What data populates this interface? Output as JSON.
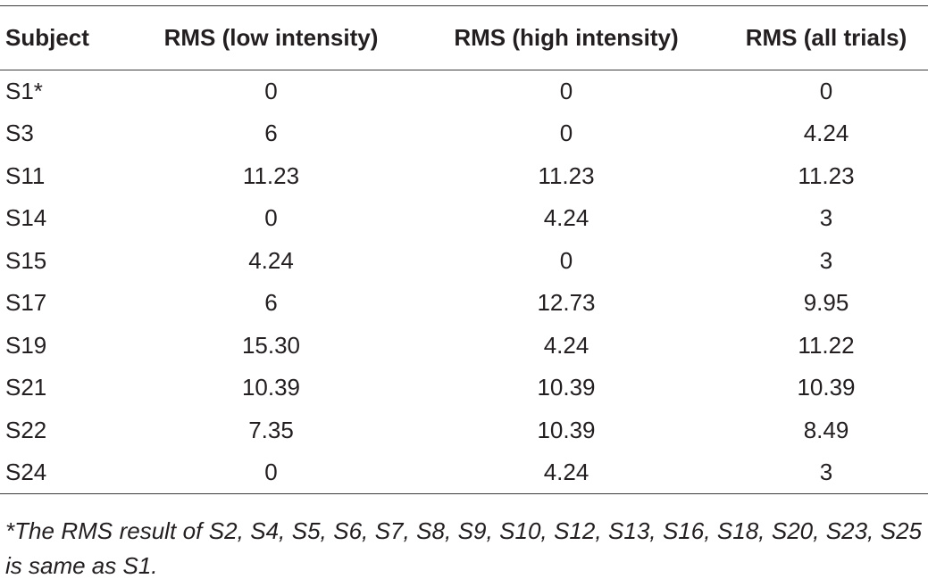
{
  "table": {
    "headers": [
      "Subject",
      "RMS (low intensity)",
      "RMS (high intensity)",
      "RMS (all trials)"
    ],
    "rows": [
      [
        "S1*",
        "0",
        "0",
        "0"
      ],
      [
        "S3",
        "6",
        "0",
        "4.24"
      ],
      [
        "S11",
        "11.23",
        "11.23",
        "11.23"
      ],
      [
        "S14",
        "0",
        "4.24",
        "3"
      ],
      [
        "S15",
        "4.24",
        "0",
        "3"
      ],
      [
        "S17",
        "6",
        "12.73",
        "9.95"
      ],
      [
        "S19",
        "15.30",
        "4.24",
        "11.22"
      ],
      [
        "S21",
        "10.39",
        "10.39",
        "10.39"
      ],
      [
        "S22",
        "7.35",
        "10.39",
        "8.49"
      ],
      [
        "S24",
        "0",
        "4.24",
        "3"
      ]
    ],
    "footnote": "*The RMS result of S2, S4, S5, S6, S7, S8, S9, S10, S12, S13, S16, S18, S20, S23, S25 is same as S1."
  }
}
